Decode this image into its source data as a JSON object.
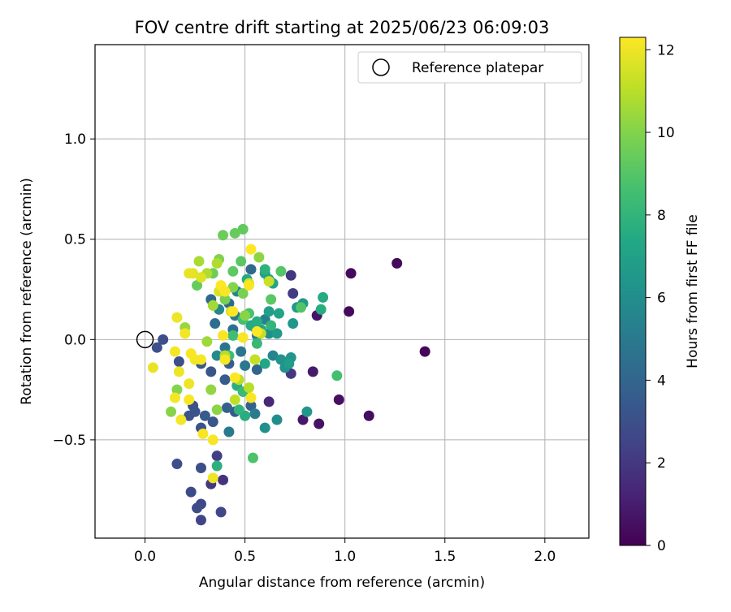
{
  "chart_data": {
    "type": "scatter",
    "title": "FOV centre drift starting at 2025/06/23 06:09:03",
    "xlabel": "Angular distance from reference (arcmin)",
    "ylabel": "Rotation from reference (arcmin)",
    "xlim": [
      -0.25,
      2.22
    ],
    "ylim": [
      -0.99,
      1.47
    ],
    "xticks": [
      0.0,
      0.5,
      1.0,
      1.5,
      2.0
    ],
    "xtick_labels": [
      "0.0",
      "0.5",
      "1.0",
      "1.5",
      "2.0"
    ],
    "yticks": [
      -0.5,
      0.0,
      0.5,
      1.0
    ],
    "ytick_labels": [
      "−0.5",
      "0.0",
      "0.5",
      "1.0"
    ],
    "grid": true,
    "legend": {
      "position": "top-right",
      "label": "Reference platepar"
    },
    "reference_point": {
      "x": 0.0,
      "y": 0.0
    },
    "colorbar": {
      "label": "Hours from first FF file",
      "cmap": "viridis",
      "min": 0,
      "max": 12.3,
      "ticks": [
        0,
        2,
        4,
        6,
        8,
        10,
        12
      ],
      "tick_labels": [
        "0",
        "2",
        "4",
        "6",
        "8",
        "10",
        "12"
      ]
    },
    "points": [
      {
        "x": 1.4,
        "y": -0.06,
        "h": 0.2
      },
      {
        "x": 1.26,
        "y": 0.38,
        "h": 0.3
      },
      {
        "x": 1.12,
        "y": -0.38,
        "h": 0.4
      },
      {
        "x": 1.03,
        "y": 0.33,
        "h": 0.3
      },
      {
        "x": 1.02,
        "y": 0.14,
        "h": 0.3
      },
      {
        "x": 0.97,
        "y": -0.3,
        "h": 0.5
      },
      {
        "x": 0.87,
        "y": -0.42,
        "h": 0.6
      },
      {
        "x": 0.86,
        "y": 0.12,
        "h": 0.7
      },
      {
        "x": 0.79,
        "y": -0.4,
        "h": 0.8
      },
      {
        "x": 0.84,
        "y": -0.16,
        "h": 0.9
      },
      {
        "x": 0.62,
        "y": -0.31,
        "h": 1.4
      },
      {
        "x": 0.73,
        "y": -0.17,
        "h": 2.0
      },
      {
        "x": 0.73,
        "y": 0.32,
        "h": 1.9
      },
      {
        "x": 0.74,
        "y": 0.23,
        "h": 2.2
      },
      {
        "x": 0.39,
        "y": -0.7,
        "h": 1.8
      },
      {
        "x": 0.33,
        "y": -0.72,
        "h": 2.0
      },
      {
        "x": 0.36,
        "y": -0.58,
        "h": 2.3
      },
      {
        "x": 0.28,
        "y": -0.9,
        "h": 2.5
      },
      {
        "x": 0.28,
        "y": -0.82,
        "h": 2.6
      },
      {
        "x": 0.26,
        "y": -0.84,
        "h": 2.8
      },
      {
        "x": 0.38,
        "y": -0.86,
        "h": 2.6
      },
      {
        "x": 0.23,
        "y": -0.76,
        "h": 2.8
      },
      {
        "x": 0.28,
        "y": -0.64,
        "h": 2.9
      },
      {
        "x": 0.16,
        "y": -0.62,
        "h": 2.9
      },
      {
        "x": 0.09,
        "y": 0.0,
        "h": 2.9
      },
      {
        "x": 0.06,
        "y": -0.04,
        "h": 3.0
      },
      {
        "x": 0.17,
        "y": -0.11,
        "h": 3.0
      },
      {
        "x": 0.24,
        "y": -0.33,
        "h": 3.1
      },
      {
        "x": 0.25,
        "y": -0.36,
        "h": 3.2
      },
      {
        "x": 0.22,
        "y": -0.38,
        "h": 3.1
      },
      {
        "x": 0.34,
        "y": -0.41,
        "h": 3.3
      },
      {
        "x": 0.28,
        "y": -0.44,
        "h": 3.2
      },
      {
        "x": 0.3,
        "y": -0.38,
        "h": 3.5
      },
      {
        "x": 0.33,
        "y": -0.16,
        "h": 3.3
      },
      {
        "x": 0.28,
        "y": -0.12,
        "h": 3.4
      },
      {
        "x": 0.4,
        "y": -0.2,
        "h": 3.5
      },
      {
        "x": 0.42,
        "y": -0.12,
        "h": 3.6
      },
      {
        "x": 0.45,
        "y": -0.36,
        "h": 3.4
      },
      {
        "x": 0.41,
        "y": -0.34,
        "h": 3.9
      },
      {
        "x": 0.53,
        "y": -0.33,
        "h": 3.8
      },
      {
        "x": 0.56,
        "y": -0.15,
        "h": 4.0
      },
      {
        "x": 0.53,
        "y": 0.35,
        "h": 4.2
      },
      {
        "x": 0.33,
        "y": 0.2,
        "h": 4.1
      },
      {
        "x": 0.42,
        "y": 0.18,
        "h": 4.3
      },
      {
        "x": 0.35,
        "y": 0.08,
        "h": 4.4
      },
      {
        "x": 0.44,
        "y": 0.05,
        "h": 4.6
      },
      {
        "x": 0.4,
        "y": -0.04,
        "h": 4.7
      },
      {
        "x": 0.48,
        "y": -0.06,
        "h": 4.8
      },
      {
        "x": 0.5,
        "y": -0.13,
        "h": 4.9
      },
      {
        "x": 0.45,
        "y": 0.12,
        "h": 5.0
      },
      {
        "x": 0.56,
        "y": 0.02,
        "h": 5.2
      },
      {
        "x": 0.6,
        "y": 0.1,
        "h": 5.3
      },
      {
        "x": 0.64,
        "y": -0.08,
        "h": 5.5
      },
      {
        "x": 0.55,
        "y": -0.37,
        "h": 5.1
      },
      {
        "x": 0.42,
        "y": -0.46,
        "h": 5.0
      },
      {
        "x": 0.37,
        "y": 0.15,
        "h": 5.6
      },
      {
        "x": 0.36,
        "y": -0.08,
        "h": 5.8
      },
      {
        "x": 0.46,
        "y": 0.24,
        "h": 5.5
      },
      {
        "x": 0.55,
        "y": 0.06,
        "h": 5.9
      },
      {
        "x": 0.62,
        "y": 0.03,
        "h": 6.0
      },
      {
        "x": 0.66,
        "y": -0.4,
        "h": 6.0
      },
      {
        "x": 0.6,
        "y": -0.44,
        "h": 6.1
      },
      {
        "x": 0.7,
        "y": -0.14,
        "h": 6.2
      },
      {
        "x": 0.73,
        "y": -0.09,
        "h": 6.3
      },
      {
        "x": 0.68,
        "y": -0.1,
        "h": 6.2
      },
      {
        "x": 0.74,
        "y": 0.08,
        "h": 6.4
      },
      {
        "x": 0.76,
        "y": 0.16,
        "h": 6.5
      },
      {
        "x": 0.79,
        "y": 0.18,
        "h": 6.6
      },
      {
        "x": 0.72,
        "y": -0.12,
        "h": 6.8
      },
      {
        "x": 0.66,
        "y": 0.03,
        "h": 6.7
      },
      {
        "x": 0.62,
        "y": 0.14,
        "h": 6.9
      },
      {
        "x": 0.6,
        "y": 0.33,
        "h": 7.0
      },
      {
        "x": 0.62,
        "y": 0.3,
        "h": 7.1
      },
      {
        "x": 0.64,
        "y": 0.28,
        "h": 7.2
      },
      {
        "x": 0.67,
        "y": 0.13,
        "h": 7.1
      },
      {
        "x": 0.6,
        "y": -0.12,
        "h": 7.3
      },
      {
        "x": 0.58,
        "y": 0.05,
        "h": 7.2
      },
      {
        "x": 0.51,
        "y": 0.3,
        "h": 7.4
      },
      {
        "x": 0.53,
        "y": 0.07,
        "h": 7.5
      },
      {
        "x": 0.56,
        "y": 0.09,
        "h": 7.6
      },
      {
        "x": 0.5,
        "y": -0.38,
        "h": 7.6
      },
      {
        "x": 0.46,
        "y": -0.23,
        "h": 7.7
      },
      {
        "x": 0.47,
        "y": -0.35,
        "h": 7.9
      },
      {
        "x": 0.36,
        "y": -0.63,
        "h": 7.8
      },
      {
        "x": 0.89,
        "y": 0.21,
        "h": 7.5
      },
      {
        "x": 0.88,
        "y": 0.15,
        "h": 7.6
      },
      {
        "x": 0.81,
        "y": -0.36,
        "h": 6.4
      },
      {
        "x": 0.6,
        "y": 0.35,
        "h": 7.8
      },
      {
        "x": 0.63,
        "y": 0.07,
        "h": 8.0
      },
      {
        "x": 0.56,
        "y": -0.02,
        "h": 8.2
      },
      {
        "x": 0.49,
        "y": -0.26,
        "h": 8.3
      },
      {
        "x": 0.42,
        "y": -0.08,
        "h": 8.4
      },
      {
        "x": 0.44,
        "y": 0.02,
        "h": 8.5
      },
      {
        "x": 0.49,
        "y": 0.1,
        "h": 8.6
      },
      {
        "x": 0.52,
        "y": 0.13,
        "h": 8.7
      },
      {
        "x": 0.54,
        "y": -0.59,
        "h": 8.8
      },
      {
        "x": 0.96,
        "y": -0.18,
        "h": 8.6
      },
      {
        "x": 0.78,
        "y": 0.16,
        "h": 8.9
      },
      {
        "x": 0.68,
        "y": 0.34,
        "h": 9.0
      },
      {
        "x": 0.63,
        "y": 0.2,
        "h": 9.1
      },
      {
        "x": 0.48,
        "y": 0.39,
        "h": 9.1
      },
      {
        "x": 0.44,
        "y": 0.34,
        "h": 9.2
      },
      {
        "x": 0.49,
        "y": 0.55,
        "h": 9.3
      },
      {
        "x": 0.45,
        "y": 0.53,
        "h": 9.4
      },
      {
        "x": 0.39,
        "y": 0.52,
        "h": 9.5
      },
      {
        "x": 0.26,
        "y": 0.27,
        "h": 9.4
      },
      {
        "x": 0.34,
        "y": 0.33,
        "h": 9.6
      },
      {
        "x": 0.4,
        "y": 0.2,
        "h": 9.8
      },
      {
        "x": 0.37,
        "y": 0.4,
        "h": 9.9
      },
      {
        "x": 0.49,
        "y": 0.23,
        "h": 9.8
      },
      {
        "x": 0.44,
        "y": 0.26,
        "h": 10.0
      },
      {
        "x": 0.5,
        "y": 0.12,
        "h": 10.1
      },
      {
        "x": 0.57,
        "y": 0.41,
        "h": 10.2
      },
      {
        "x": 0.16,
        "y": -0.25,
        "h": 10.0
      },
      {
        "x": 0.13,
        "y": -0.36,
        "h": 10.1
      },
      {
        "x": 0.33,
        "y": -0.25,
        "h": 10.3
      },
      {
        "x": 0.36,
        "y": -0.35,
        "h": 10.2
      },
      {
        "x": 0.2,
        "y": 0.06,
        "h": 10.4
      },
      {
        "x": 0.31,
        "y": -0.01,
        "h": 10.5
      },
      {
        "x": 0.34,
        "y": 0.17,
        "h": 10.6
      },
      {
        "x": 0.27,
        "y": 0.39,
        "h": 10.7
      },
      {
        "x": 0.36,
        "y": 0.38,
        "h": 10.8
      },
      {
        "x": 0.31,
        "y": 0.33,
        "h": 10.8
      },
      {
        "x": 0.4,
        "y": -0.08,
        "h": 10.9
      },
      {
        "x": 0.47,
        "y": -0.2,
        "h": 11.0
      },
      {
        "x": 0.52,
        "y": -0.24,
        "h": 11.0
      },
      {
        "x": 0.45,
        "y": -0.3,
        "h": 11.1
      },
      {
        "x": 0.55,
        "y": -0.1,
        "h": 11.2
      },
      {
        "x": 0.58,
        "y": 0.03,
        "h": 11.2
      },
      {
        "x": 0.62,
        "y": 0.29,
        "h": 11.3
      },
      {
        "x": 0.52,
        "y": 0.28,
        "h": 11.4
      },
      {
        "x": 0.43,
        "y": 0.14,
        "h": 11.5
      },
      {
        "x": 0.37,
        "y": 0.24,
        "h": 11.6
      },
      {
        "x": 0.28,
        "y": 0.31,
        "h": 11.7
      },
      {
        "x": 0.24,
        "y": 0.33,
        "h": 11.8
      },
      {
        "x": 0.22,
        "y": 0.33,
        "h": 11.9
      },
      {
        "x": 0.16,
        "y": 0.11,
        "h": 12.0
      },
      {
        "x": 0.2,
        "y": 0.03,
        "h": 12.1
      },
      {
        "x": 0.04,
        "y": -0.14,
        "h": 11.9
      },
      {
        "x": 0.17,
        "y": -0.16,
        "h": 12.0
      },
      {
        "x": 0.15,
        "y": -0.06,
        "h": 12.1
      },
      {
        "x": 0.22,
        "y": -0.22,
        "h": 12.0
      },
      {
        "x": 0.15,
        "y": -0.29,
        "h": 12.1
      },
      {
        "x": 0.22,
        "y": -0.3,
        "h": 12.2
      },
      {
        "x": 0.18,
        "y": -0.4,
        "h": 12.1
      },
      {
        "x": 0.29,
        "y": -0.47,
        "h": 12.2
      },
      {
        "x": 0.34,
        "y": -0.5,
        "h": 12.2
      },
      {
        "x": 0.34,
        "y": -0.69,
        "h": 12.0
      },
      {
        "x": 0.28,
        "y": -0.1,
        "h": 12.2
      },
      {
        "x": 0.25,
        "y": -0.1,
        "h": 12.1
      },
      {
        "x": 0.23,
        "y": -0.07,
        "h": 12.2
      },
      {
        "x": 0.39,
        "y": 0.02,
        "h": 12.2
      },
      {
        "x": 0.4,
        "y": -0.1,
        "h": 12.2
      },
      {
        "x": 0.45,
        "y": -0.19,
        "h": 12.3
      },
      {
        "x": 0.53,
        "y": -0.29,
        "h": 12.2
      },
      {
        "x": 0.53,
        "y": 0.45,
        "h": 12.3
      },
      {
        "x": 0.52,
        "y": 0.27,
        "h": 12.2
      },
      {
        "x": 0.38,
        "y": 0.27,
        "h": 12.3
      },
      {
        "x": 0.4,
        "y": 0.24,
        "h": 12.2
      },
      {
        "x": 0.44,
        "y": 0.14,
        "h": 12.3
      },
      {
        "x": 0.49,
        "y": 0.01,
        "h": 12.2
      },
      {
        "x": 0.56,
        "y": 0.04,
        "h": 12.3
      }
    ]
  }
}
